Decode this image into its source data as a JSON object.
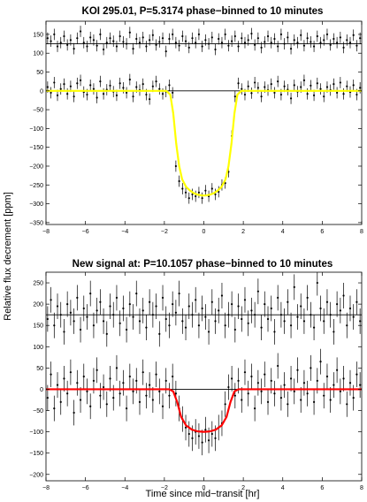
{
  "figure": {
    "ylabel": "Relative flux decrement [ppm]",
    "xlabel": "Time since mid−transit [hr]"
  },
  "chart_data": [
    {
      "type": "scatter",
      "title": "KOI 295.01, P=5.3174 phase−binned to 10 minutes",
      "xlim": [
        -8,
        8
      ],
      "ylim": [
        -355,
        185
      ],
      "xticks": [
        -8,
        -6,
        -4,
        -2,
        0,
        2,
        4,
        6,
        8
      ],
      "yticks": [
        -350,
        -300,
        -250,
        -200,
        -150,
        -100,
        -50,
        0,
        50,
        100,
        150
      ],
      "xtick_labels": [
        "−8",
        "−6",
        "−4",
        "−2",
        "0",
        "2",
        "4",
        "6",
        "8"
      ],
      "ytick_labels": [
        "−350",
        "−300",
        "−250",
        "−200",
        "−150",
        "−100",
        "−50",
        "0",
        "50",
        "100",
        "150"
      ],
      "series": [
        {
          "role": "binned-data",
          "offset_reference_line": 125,
          "error": 15,
          "color": "#000000",
          "x": [
            -7.917,
            -7.75,
            -7.583,
            -7.417,
            -7.25,
            -7.083,
            -6.917,
            -6.75,
            -6.583,
            -6.417,
            -6.25,
            -6.083,
            -5.917,
            -5.75,
            -5.583,
            -5.417,
            -5.25,
            -5.083,
            -4.917,
            -4.75,
            -4.583,
            -4.417,
            -4.25,
            -4.083,
            -3.917,
            -3.75,
            -3.583,
            -3.417,
            -3.25,
            -3.083,
            -2.917,
            -2.75,
            -2.583,
            -2.417,
            -2.25,
            -2.083,
            -1.917,
            -1.75,
            -1.583,
            -1.417,
            -1.25,
            -1.083,
            -0.917,
            -0.75,
            -0.583,
            -0.417,
            -0.25,
            -0.083,
            0.083,
            0.25,
            0.417,
            0.583,
            0.75,
            0.917,
            1.083,
            1.25,
            1.417,
            1.583,
            1.75,
            1.917,
            2.083,
            2.25,
            2.417,
            2.583,
            2.75,
            2.917,
            3.083,
            3.25,
            3.417,
            3.583,
            3.75,
            3.917,
            4.083,
            4.25,
            4.417,
            4.583,
            4.75,
            4.917,
            5.083,
            5.25,
            5.417,
            5.583,
            5.75,
            5.917,
            6.083,
            6.25,
            6.417,
            6.583,
            6.75,
            6.917,
            7.083,
            7.25,
            7.417,
            7.583,
            7.75,
            7.917
          ],
          "y": [
            140,
            132,
            150,
            118,
            128,
            145,
            122,
            135,
            112,
            140,
            158,
            128,
            118,
            142,
            135,
            120,
            150,
            110,
            128,
            140,
            132,
            118,
            145,
            130,
            125,
            155,
            112,
            138,
            128,
            142,
            118,
            135,
            148,
            122,
            130,
            140,
            105,
            138,
            150,
            128,
            120,
            145,
            132,
            115,
            140,
            128,
            150,
            118,
            135,
            125,
            142,
            110,
            138,
            128,
            150,
            120,
            132,
            145,
            118,
            140,
            128,
            135,
            152,
            122,
            140,
            115,
            130,
            145,
            128,
            138,
            118,
            150,
            125,
            142,
            112,
            135,
            128,
            148,
            120,
            140,
            130,
            118,
            145,
            128,
            135,
            150,
            122,
            138,
            128,
            142,
            115,
            135,
            128,
            148,
            120,
            140
          ]
        },
        {
          "role": "binned-data",
          "error": 15,
          "color": "#000000",
          "x": [
            -7.917,
            -7.75,
            -7.583,
            -7.417,
            -7.25,
            -7.083,
            -6.917,
            -6.75,
            -6.583,
            -6.417,
            -6.25,
            -6.083,
            -5.917,
            -5.75,
            -5.583,
            -5.417,
            -5.25,
            -5.083,
            -4.917,
            -4.75,
            -4.583,
            -4.417,
            -4.25,
            -4.083,
            -3.917,
            -3.75,
            -3.583,
            -3.417,
            -3.25,
            -3.083,
            -2.917,
            -2.75,
            -2.583,
            -2.417,
            -2.25,
            -2.083,
            -1.917,
            -1.75,
            -1.583,
            -1.417,
            -1.25,
            -1.083,
            -0.917,
            -0.75,
            -0.583,
            -0.417,
            -0.25,
            -0.083,
            0.083,
            0.25,
            0.417,
            0.583,
            0.75,
            0.917,
            1.083,
            1.25,
            1.417,
            1.583,
            1.75,
            1.917,
            2.083,
            2.25,
            2.417,
            2.583,
            2.75,
            2.917,
            3.083,
            3.25,
            3.417,
            3.583,
            3.75,
            3.917,
            4.083,
            4.25,
            4.417,
            4.583,
            4.75,
            4.917,
            5.083,
            5.25,
            5.417,
            5.583,
            5.75,
            5.917,
            6.083,
            6.25,
            6.417,
            6.583,
            6.75,
            6.917,
            7.083,
            7.25,
            7.417,
            7.583,
            7.75,
            7.917
          ],
          "y": [
            10,
            -5,
            22,
            -12,
            5,
            18,
            -8,
            12,
            -15,
            20,
            28,
            -3,
            -10,
            15,
            5,
            -18,
            25,
            -8,
            3,
            14,
            -2,
            -12,
            20,
            8,
            -5,
            30,
            -15,
            10,
            2,
            18,
            -10,
            -22,
            12,
            25,
            5,
            -8,
            -2,
            15,
            -5,
            -200,
            -240,
            -260,
            -270,
            -285,
            -275,
            -280,
            -270,
            -285,
            -265,
            -280,
            -260,
            -275,
            -268,
            -250,
            -245,
            -215,
            -120,
            -15,
            20,
            5,
            -10,
            12,
            -6,
            22,
            8,
            -15,
            10,
            2,
            18,
            -5,
            25,
            -10,
            12,
            3,
            -20,
            15,
            -2,
            10,
            28,
            -8,
            14,
            -12,
            20,
            5,
            -15,
            10,
            2,
            18,
            -5,
            22,
            -8,
            12,
            -3,
            15,
            -10,
            8
          ]
        },
        {
          "role": "model",
          "color": "#ffff00",
          "x": [
            -8,
            -1.9,
            -1.7,
            -1.55,
            -1.4,
            -1.25,
            -1.1,
            -0.9,
            -0.7,
            -0.5,
            -0.3,
            -0.1,
            0,
            0.1,
            0.3,
            0.5,
            0.7,
            0.9,
            1.1,
            1.25,
            1.4,
            1.55,
            1.7,
            1.9,
            8
          ],
          "y": [
            0,
            0,
            -10,
            -60,
            -140,
            -200,
            -235,
            -255,
            -265,
            -272,
            -276,
            -278,
            -278,
            -278,
            -276,
            -272,
            -265,
            -255,
            -235,
            -200,
            -140,
            -60,
            -10,
            0,
            0
          ]
        }
      ]
    },
    {
      "type": "scatter",
      "title": "New signal at: P=10.1057 phase−binned to 10 minutes",
      "xlim": [
        -8,
        8
      ],
      "ylim": [
        -215,
        275
      ],
      "xticks": [
        -8,
        -6,
        -4,
        -2,
        0,
        2,
        4,
        6,
        8
      ],
      "yticks": [
        -200,
        -150,
        -100,
        -50,
        0,
        50,
        100,
        150,
        200,
        250
      ],
      "xtick_labels": [
        "−8",
        "−6",
        "−4",
        "−2",
        "0",
        "2",
        "4",
        "6",
        "8"
      ],
      "ytick_labels": [
        "−200",
        "−150",
        "−100",
        "−50",
        "0",
        "50",
        "100",
        "150",
        "200",
        "250"
      ],
      "series": [
        {
          "role": "binned-data",
          "offset_reference_line": 175,
          "error": 30,
          "color": "#000000",
          "x": [
            -7.917,
            -7.75,
            -7.583,
            -7.417,
            -7.25,
            -7.083,
            -6.917,
            -6.75,
            -6.583,
            -6.417,
            -6.25,
            -6.083,
            -5.917,
            -5.75,
            -5.583,
            -5.417,
            -5.25,
            -5.083,
            -4.917,
            -4.75,
            -4.583,
            -4.417,
            -4.25,
            -4.083,
            -3.917,
            -3.75,
            -3.583,
            -3.417,
            -3.25,
            -3.083,
            -2.917,
            -2.75,
            -2.583,
            -2.417,
            -2.25,
            -2.083,
            -1.917,
            -1.75,
            -1.583,
            -1.417,
            -1.25,
            -1.083,
            -0.917,
            -0.75,
            -0.583,
            -0.417,
            -0.25,
            -0.083,
            0.083,
            0.25,
            0.417,
            0.583,
            0.75,
            0.917,
            1.083,
            1.25,
            1.417,
            1.583,
            1.75,
            1.917,
            2.083,
            2.25,
            2.417,
            2.583,
            2.75,
            2.917,
            3.083,
            3.25,
            3.417,
            3.583,
            3.75,
            3.917,
            4.083,
            4.25,
            4.417,
            4.583,
            4.75,
            4.917,
            5.083,
            5.25,
            5.417,
            5.583,
            5.75,
            5.917,
            6.083,
            6.25,
            6.417,
            6.583,
            6.75,
            6.917,
            7.083,
            7.25,
            7.417,
            7.583,
            7.75,
            7.917
          ],
          "y": [
            165,
            210,
            150,
            195,
            175,
            135,
            200,
            180,
            160,
            215,
            140,
            190,
            170,
            225,
            150,
            185,
            205,
            160,
            130,
            195,
            175,
            215,
            155,
            190,
            140,
            200,
            170,
            225,
            160,
            185,
            145,
            205,
            175,
            195,
            130,
            215,
            165,
            150,
            200,
            180,
            225,
            160,
            145,
            195,
            175,
            210,
            150,
            190,
            170,
            135,
            205,
            160,
            185,
            220,
            150,
            175,
            200,
            140,
            195,
            165,
            210,
            155,
            185,
            175,
            230,
            145,
            200,
            165,
            190,
            135,
            215,
            175,
            160,
            205,
            150,
            240,
            170,
            195,
            160,
            215,
            175,
            145,
            250,
            190,
            160,
            205,
            175,
            135,
            200,
            185,
            220,
            150,
            190,
            170,
            205,
            160
          ]
        },
        {
          "role": "binned-data",
          "error": 30,
          "color": "#000000",
          "x": [
            -7.917,
            -7.75,
            -7.583,
            -7.417,
            -7.25,
            -7.083,
            -6.917,
            -6.75,
            -6.583,
            -6.417,
            -6.25,
            -6.083,
            -5.917,
            -5.75,
            -5.583,
            -5.417,
            -5.25,
            -5.083,
            -4.917,
            -4.75,
            -4.583,
            -4.417,
            -4.25,
            -4.083,
            -3.917,
            -3.75,
            -3.583,
            -3.417,
            -3.25,
            -3.083,
            -2.917,
            -2.75,
            -2.583,
            -2.417,
            -2.25,
            -2.083,
            -1.917,
            -1.75,
            -1.583,
            -1.417,
            -1.25,
            -1.083,
            -0.917,
            -0.75,
            -0.583,
            -0.417,
            -0.25,
            -0.083,
            0.083,
            0.25,
            0.417,
            0.583,
            0.75,
            0.917,
            1.083,
            1.25,
            1.417,
            1.583,
            1.75,
            1.917,
            2.083,
            2.25,
            2.417,
            2.583,
            2.75,
            2.917,
            3.083,
            3.25,
            3.417,
            3.583,
            3.75,
            3.917,
            4.083,
            4.25,
            4.417,
            4.583,
            4.75,
            4.917,
            5.083,
            5.25,
            5.417,
            5.583,
            5.75,
            5.917,
            6.083,
            6.25,
            6.417,
            6.583,
            6.75,
            6.917,
            7.083,
            7.25,
            7.417,
            7.583,
            7.75,
            7.917
          ],
          "y": [
            -20,
            35,
            -45,
            10,
            -30,
            25,
            -10,
            40,
            -55,
            15,
            -25,
            30,
            -5,
            -40,
            20,
            45,
            -15,
            5,
            -35,
            25,
            -20,
            50,
            -10,
            15,
            -45,
            30,
            -5,
            20,
            -30,
            40,
            -15,
            10,
            -25,
            35,
            -5,
            -40,
            20,
            -15,
            30,
            -10,
            -45,
            -70,
            -90,
            -105,
            -115,
            -100,
            -110,
            -125,
            -95,
            -120,
            -105,
            -115,
            -90,
            -80,
            -35,
            5,
            25,
            -15,
            20,
            -25,
            40,
            -10,
            30,
            -45,
            15,
            -5,
            35,
            -30,
            20,
            -10,
            55,
            -20,
            10,
            -35,
            25,
            -5,
            45,
            -25,
            15,
            -10,
            50,
            -30,
            20,
            65,
            -15,
            30,
            -25,
            10,
            45,
            -5,
            25,
            -35,
            15,
            -20,
            35,
            10
          ]
        },
        {
          "role": "model",
          "color": "#ff0000",
          "x": [
            -8,
            -1.75,
            -1.55,
            -1.35,
            -1.15,
            -0.9,
            -0.6,
            -0.3,
            0,
            0.3,
            0.6,
            0.9,
            1.15,
            1.35,
            1.55,
            1.75,
            8
          ],
          "y": [
            0,
            0,
            -5,
            -30,
            -65,
            -85,
            -95,
            -99,
            -100,
            -99,
            -95,
            -85,
            -65,
            -30,
            -5,
            0,
            0
          ]
        }
      ]
    }
  ]
}
